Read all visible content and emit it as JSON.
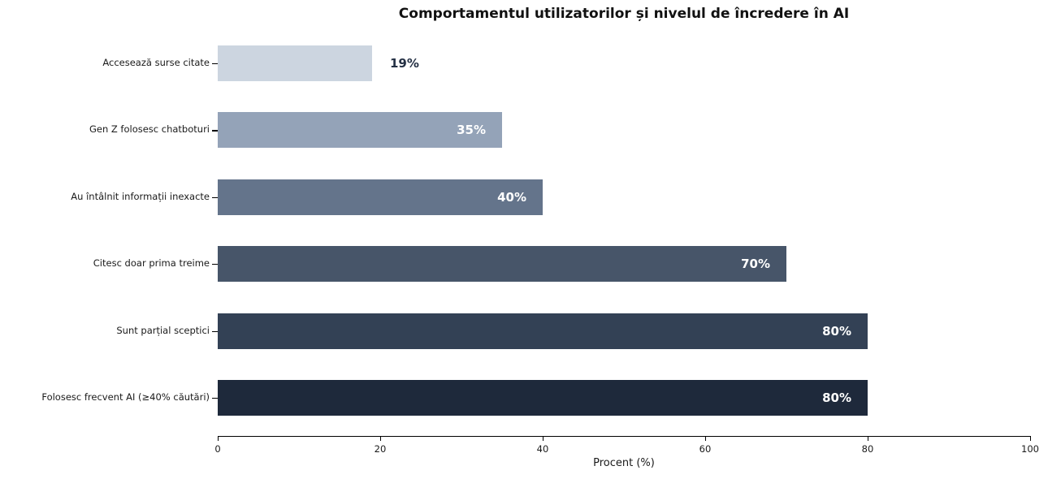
{
  "title": "Comportamentul utilizatorilor și nivelul de încredere în AI",
  "chart_data": {
    "type": "bar",
    "orientation": "horizontal",
    "title": "Comportamentul utilizatorilor și nivelul de încredere în AI",
    "categories": [
      "Accesează surse citate",
      "Gen Z folosesc chatboturi",
      "Au întâlnit informații inexacte",
      "Citesc doar prima treime",
      "Sunt parțial sceptici",
      "Folosesc frecvent AI (≥40% căutări)"
    ],
    "values": [
      19,
      35,
      40,
      70,
      80,
      80
    ],
    "value_labels": [
      "19%",
      "35%",
      "40%",
      "70%",
      "80%",
      "80%"
    ],
    "bar_colors": [
      "#ccd5e0",
      "#94a3b8",
      "#64748b",
      "#475569",
      "#334155",
      "#1e293b"
    ],
    "xlabel": "Procent (%)",
    "xlim": [
      0,
      100
    ],
    "x_ticks": [
      0,
      20,
      40,
      60,
      80,
      100
    ],
    "grid": false,
    "legend": false
  },
  "colors": {
    "value_label_dark": "#243044",
    "value_label_light": "#ffffff",
    "axis": "#000000"
  }
}
